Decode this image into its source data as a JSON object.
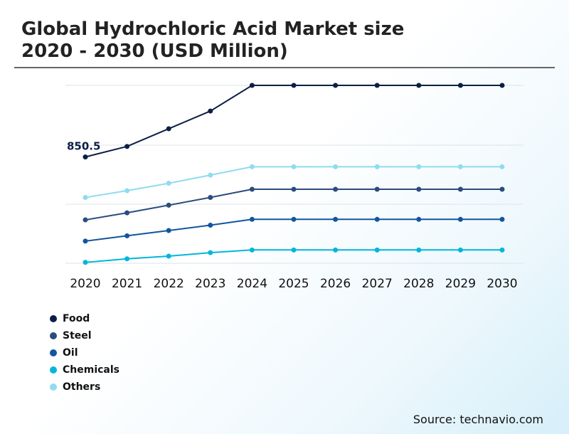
{
  "title_line1": "Global Hydrochloric Acid Market size",
  "title_line2": "2020 - 2030 (USD Million)",
  "source": "Source: technavio.com",
  "chart_data": {
    "type": "line",
    "x": [
      "2020",
      "2021",
      "2022",
      "2023",
      "2024",
      "2025",
      "2026",
      "2027",
      "2028",
      "2029",
      "2030"
    ],
    "annotation": {
      "text": "850.5",
      "series": "Food",
      "x": "2020"
    },
    "grid": true,
    "legend_position": "bottom-left",
    "series": [
      {
        "name": "Food",
        "color": "#0b1f45",
        "values": [
          850.5,
          910,
          1010,
          1110,
          1255,
          1255,
          1255,
          1255,
          1255,
          1255,
          1255
        ]
      },
      {
        "name": "Steel",
        "color": "#2a4d7c",
        "values": [
          495,
          535,
          578,
          622,
          668,
          668,
          668,
          668,
          668,
          668,
          668
        ]
      },
      {
        "name": "Oil",
        "color": "#11569e",
        "values": [
          375,
          405,
          435,
          465,
          498,
          498,
          498,
          498,
          498,
          498,
          498
        ]
      },
      {
        "name": "Chemicals",
        "color": "#00b7d9",
        "values": [
          255,
          275,
          290,
          310,
          325,
          325,
          325,
          325,
          325,
          325,
          325
        ]
      },
      {
        "name": "Others",
        "color": "#8fdcef",
        "values": [
          622,
          660,
          702,
          748,
          795,
          795,
          795,
          795,
          795,
          795,
          795
        ]
      }
    ],
    "ylim": [
      250,
      1255
    ]
  }
}
